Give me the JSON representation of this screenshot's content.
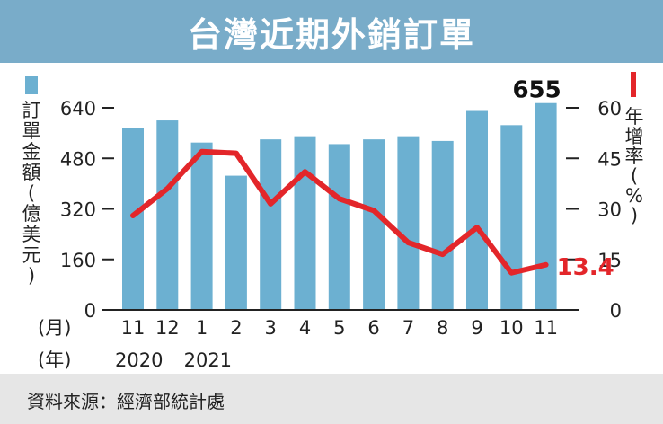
{
  "title": "台灣近期外銷訂單",
  "source": "資料來源：經濟部統計處",
  "colors": {
    "title_bg": "#79acc9",
    "bar": "#6cb0d1",
    "line": "#e3262a",
    "footer_bg": "#e6e6e6",
    "text": "#222222"
  },
  "chart_data": {
    "type": "bar",
    "categories": [
      "11",
      "12",
      "1",
      "2",
      "3",
      "4",
      "5",
      "6",
      "7",
      "8",
      "9",
      "10",
      "11"
    ],
    "year_labels": [
      {
        "label": "2020",
        "index": 0
      },
      {
        "label": "2021",
        "index": 2
      }
    ],
    "month_axis_label": "(月)",
    "year_axis_label": "(年)",
    "series": [
      {
        "name": "訂單金額(億美元)",
        "type": "bar",
        "axis": "left",
        "values": [
          575,
          600,
          530,
          425,
          540,
          550,
          525,
          540,
          550,
          535,
          630,
          585,
          655
        ]
      },
      {
        "name": "年增率(%)",
        "type": "line",
        "axis": "right",
        "values": [
          28,
          36,
          47,
          46.5,
          31.5,
          41,
          33,
          29.5,
          20,
          16.5,
          24.5,
          11,
          13.4
        ]
      }
    ],
    "left_axis": {
      "label": "訂單金額(億美元)",
      "ylim": [
        0,
        640
      ],
      "ticks": [
        0,
        160,
        320,
        480,
        640
      ]
    },
    "right_axis": {
      "label": "年增率(%)",
      "ylim": [
        0,
        60
      ],
      "ticks": [
        0,
        15,
        30,
        45,
        60
      ]
    },
    "annotations": {
      "last_bar_value": "655",
      "last_line_value": "13.4"
    },
    "grid": false,
    "legend": "none"
  }
}
